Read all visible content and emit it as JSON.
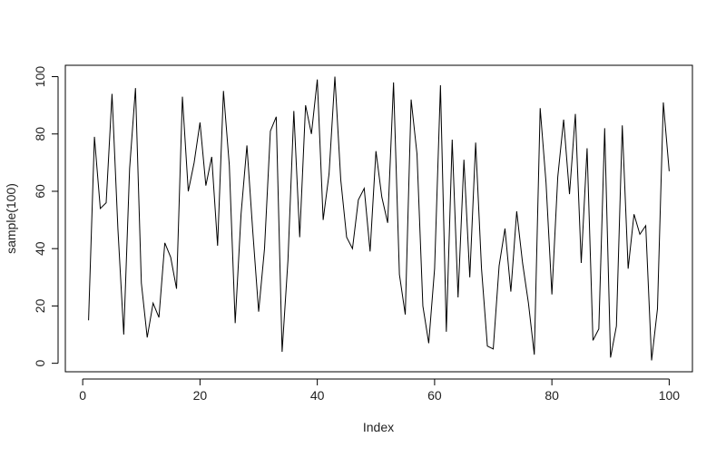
{
  "chart_data": {
    "type": "line",
    "xlabel": "Index",
    "ylabel": "sample(100)",
    "x": [
      1,
      2,
      3,
      4,
      5,
      6,
      7,
      8,
      9,
      10,
      11,
      12,
      13,
      14,
      15,
      16,
      17,
      18,
      19,
      20,
      21,
      22,
      23,
      24,
      25,
      26,
      27,
      28,
      29,
      30,
      31,
      32,
      33,
      34,
      35,
      36,
      37,
      38,
      39,
      40,
      41,
      42,
      43,
      44,
      45,
      46,
      47,
      48,
      49,
      50,
      51,
      52,
      53,
      54,
      55,
      56,
      57,
      58,
      59,
      60,
      61,
      62,
      63,
      64,
      65,
      66,
      67,
      68,
      69,
      70,
      71,
      72,
      73,
      74,
      75,
      76,
      77,
      78,
      79,
      80,
      81,
      82,
      83,
      84,
      85,
      86,
      87,
      88,
      89,
      90,
      91,
      92,
      93,
      94,
      95,
      96,
      97,
      98,
      99,
      100
    ],
    "values": [
      15,
      79,
      54,
      56,
      94,
      47,
      10,
      68,
      96,
      28,
      9,
      21,
      16,
      42,
      37,
      26,
      93,
      60,
      70,
      84,
      62,
      72,
      41,
      95,
      69,
      14,
      52,
      76,
      46,
      18,
      40,
      81,
      86,
      4,
      36,
      88,
      44,
      90,
      80,
      99,
      50,
      66,
      100,
      64,
      44,
      40,
      57,
      61,
      39,
      74,
      58,
      49,
      98,
      31,
      17,
      92,
      73,
      20,
      7,
      33,
      97,
      11,
      78,
      23,
      71,
      30,
      77,
      33,
      6,
      5,
      34,
      47,
      25,
      53,
      35,
      21,
      3,
      89,
      63,
      24,
      65,
      85,
      59,
      87,
      35,
      75,
      8,
      12,
      82,
      2,
      13,
      83,
      33,
      52,
      45,
      48,
      1,
      19,
      91,
      67
    ],
    "color": "#000000",
    "xlim": [
      -2.96,
      103.96
    ],
    "ylim": [
      -2.96,
      103.96
    ],
    "xticks": [
      0,
      20,
      40,
      60,
      80,
      100
    ],
    "yticks": [
      0,
      20,
      40,
      60,
      80,
      100
    ]
  }
}
